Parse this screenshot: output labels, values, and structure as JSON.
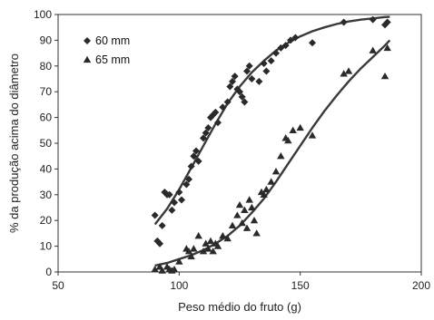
{
  "chart_data": {
    "type": "scatter",
    "xlabel": "Peso médio do fruto (g)",
    "ylabel": "% da produção acima do diâmetro",
    "xlim": [
      50,
      200
    ],
    "ylim": [
      0,
      100
    ],
    "xticks": [
      50,
      100,
      150,
      200
    ],
    "yticks": [
      0,
      10,
      20,
      30,
      40,
      50,
      60,
      70,
      80,
      90,
      100
    ],
    "grid": false,
    "legend_position": "top-left",
    "series": [
      {
        "name": "60 mm",
        "marker": "diamond",
        "color": "#2a2a2a",
        "points": [
          [
            90,
            22
          ],
          [
            91,
            12
          ],
          [
            92,
            11
          ],
          [
            93,
            18
          ],
          [
            94,
            31
          ],
          [
            95,
            30
          ],
          [
            96,
            30
          ],
          [
            97,
            24
          ],
          [
            98,
            27
          ],
          [
            100,
            31
          ],
          [
            101,
            28
          ],
          [
            103,
            34
          ],
          [
            104,
            36
          ],
          [
            105,
            41
          ],
          [
            106,
            45
          ],
          [
            107,
            47
          ],
          [
            108,
            43
          ],
          [
            110,
            52
          ],
          [
            111,
            54
          ],
          [
            112,
            56
          ],
          [
            113,
            60
          ],
          [
            114,
            61
          ],
          [
            115,
            62
          ],
          [
            116,
            58
          ],
          [
            118,
            64
          ],
          [
            120,
            66
          ],
          [
            121,
            72
          ],
          [
            122,
            74
          ],
          [
            123,
            76
          ],
          [
            124,
            71
          ],
          [
            125,
            70
          ],
          [
            126,
            68
          ],
          [
            127,
            66
          ],
          [
            128,
            78
          ],
          [
            129,
            80
          ],
          [
            130,
            75
          ],
          [
            133,
            74
          ],
          [
            135,
            81
          ],
          [
            136,
            78
          ],
          [
            138,
            82
          ],
          [
            140,
            85
          ],
          [
            142,
            87
          ],
          [
            144,
            88
          ],
          [
            146,
            90
          ],
          [
            148,
            91
          ],
          [
            155,
            89
          ],
          [
            168,
            97
          ],
          [
            180,
            98
          ],
          [
            185,
            96
          ],
          [
            186,
            97
          ]
        ],
        "fit_curve": [
          [
            90,
            18.5
          ],
          [
            95,
            24.5
          ],
          [
            100,
            32
          ],
          [
            105,
            40.5
          ],
          [
            110,
            49
          ],
          [
            115,
            57.5
          ],
          [
            120,
            65.5
          ],
          [
            125,
            72
          ],
          [
            130,
            77.5
          ],
          [
            135,
            82
          ],
          [
            140,
            86
          ],
          [
            145,
            89
          ],
          [
            150,
            91.5
          ],
          [
            155,
            93.5
          ],
          [
            160,
            95
          ],
          [
            165,
            96.3
          ],
          [
            170,
            97.3
          ],
          [
            175,
            98
          ],
          [
            180,
            98.5
          ],
          [
            185,
            99
          ],
          [
            187,
            99.1
          ]
        ]
      },
      {
        "name": "65 mm",
        "marker": "triangle",
        "color": "#2a2a2a",
        "points": [
          [
            90,
            1
          ],
          [
            92,
            2
          ],
          [
            93,
            0.5
          ],
          [
            95,
            2
          ],
          [
            96,
            1
          ],
          [
            97,
            0.5
          ],
          [
            98,
            1
          ],
          [
            100,
            4
          ],
          [
            103,
            9
          ],
          [
            104,
            8
          ],
          [
            105,
            6
          ],
          [
            106,
            9
          ],
          [
            108,
            14
          ],
          [
            110,
            8
          ],
          [
            111,
            11
          ],
          [
            112,
            9
          ],
          [
            113,
            12
          ],
          [
            114,
            8
          ],
          [
            115,
            11
          ],
          [
            116,
            10
          ],
          [
            118,
            14
          ],
          [
            120,
            13
          ],
          [
            122,
            18
          ],
          [
            124,
            22
          ],
          [
            125,
            26
          ],
          [
            126,
            19
          ],
          [
            127,
            24
          ],
          [
            128,
            17
          ],
          [
            129,
            28
          ],
          [
            130,
            25
          ],
          [
            131,
            20
          ],
          [
            132,
            15
          ],
          [
            134,
            31
          ],
          [
            135,
            30
          ],
          [
            136,
            32
          ],
          [
            138,
            35
          ],
          [
            140,
            39
          ],
          [
            142,
            45
          ],
          [
            144,
            52
          ],
          [
            145,
            51
          ],
          [
            147,
            55
          ],
          [
            150,
            56
          ],
          [
            155,
            53
          ],
          [
            168,
            77
          ],
          [
            170,
            78
          ],
          [
            180,
            86
          ],
          [
            185,
            76
          ],
          [
            186,
            87
          ]
        ],
        "fit_curve": [
          [
            90,
            2.5
          ],
          [
            95,
            3.5
          ],
          [
            100,
            5
          ],
          [
            105,
            6.5
          ],
          [
            110,
            8.5
          ],
          [
            115,
            11
          ],
          [
            120,
            14
          ],
          [
            125,
            18
          ],
          [
            130,
            23
          ],
          [
            135,
            28.5
          ],
          [
            140,
            35
          ],
          [
            145,
            42
          ],
          [
            150,
            49
          ],
          [
            155,
            56
          ],
          [
            160,
            62.5
          ],
          [
            165,
            68.5
          ],
          [
            170,
            74
          ],
          [
            175,
            79
          ],
          [
            180,
            83.5
          ],
          [
            185,
            88
          ],
          [
            187,
            90
          ]
        ]
      }
    ]
  }
}
